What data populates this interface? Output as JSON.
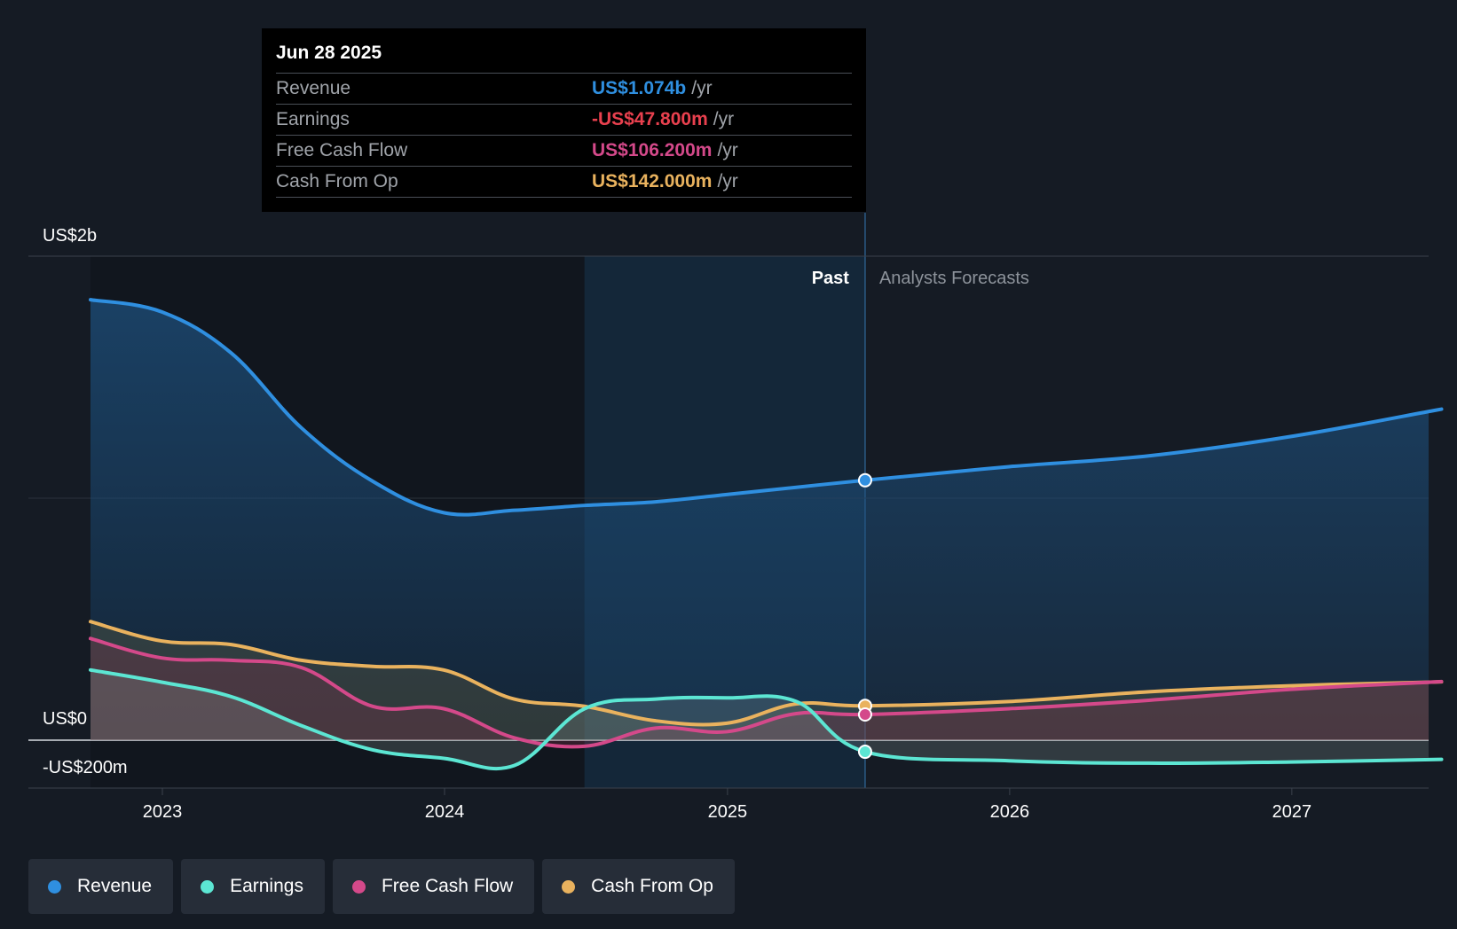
{
  "tooltip": {
    "date": "Jun 28 2025",
    "rows": [
      {
        "name": "Revenue",
        "value": "US$1.074b",
        "unit": "/yr",
        "color": "#2f8fe0"
      },
      {
        "name": "Earnings",
        "value": "-US$47.800m",
        "unit": "/yr",
        "color": "#e8404e"
      },
      {
        "name": "Free Cash Flow",
        "value": "US$106.200m",
        "unit": "/yr",
        "color": "#d4498a"
      },
      {
        "name": "Cash From Op",
        "value": "US$142.000m",
        "unit": "/yr",
        "color": "#e9b25e"
      }
    ]
  },
  "legend": [
    {
      "label": "Revenue",
      "color": "#2f8fe0"
    },
    {
      "label": "Earnings",
      "color": "#5ce6d3"
    },
    {
      "label": "Free Cash Flow",
      "color": "#d4498a"
    },
    {
      "label": "Cash From Op",
      "color": "#e9b25e"
    }
  ],
  "chart_data": {
    "type": "line",
    "y_axis_labels": [
      "US$2b",
      "US$0",
      "-US$200m"
    ],
    "x_ticks": [
      "2023",
      "2024",
      "2025",
      "2026",
      "2027"
    ],
    "ylim": [
      -400,
      2000
    ],
    "region_labels": {
      "past": "Past",
      "forecast": "Analysts Forecasts"
    },
    "past_end_date": "2025-06-28",
    "series": [
      {
        "name": "Revenue",
        "color": "#2f8fe0",
        "points": [
          [
            "2022-09-30",
            1820
          ],
          [
            "2022-12-31",
            1770
          ],
          [
            "2023-03-31",
            1600
          ],
          [
            "2023-06-30",
            1290
          ],
          [
            "2023-09-30",
            1070
          ],
          [
            "2023-12-31",
            940
          ],
          [
            "2024-03-31",
            950
          ],
          [
            "2024-06-30",
            970
          ],
          [
            "2024-09-30",
            985
          ],
          [
            "2024-12-31",
            1015
          ],
          [
            "2025-03-31",
            1045
          ],
          [
            "2025-06-28",
            1074
          ],
          [
            "2025-12-31",
            1130
          ],
          [
            "2026-06-30",
            1175
          ],
          [
            "2026-12-31",
            1255
          ],
          [
            "2027-06-30",
            1360
          ]
        ]
      },
      {
        "name": "Earnings",
        "color": "#5ce6d3",
        "points": [
          [
            "2022-09-30",
            290
          ],
          [
            "2022-12-31",
            240
          ],
          [
            "2023-03-31",
            180
          ],
          [
            "2023-06-30",
            60
          ],
          [
            "2023-09-30",
            -40
          ],
          [
            "2023-12-31",
            -75
          ],
          [
            "2024-03-31",
            -105
          ],
          [
            "2024-06-30",
            130
          ],
          [
            "2024-09-30",
            170
          ],
          [
            "2024-12-31",
            175
          ],
          [
            "2025-03-31",
            160
          ],
          [
            "2025-06-28",
            -47.8
          ],
          [
            "2025-12-31",
            -85
          ],
          [
            "2026-06-30",
            -95
          ],
          [
            "2026-12-31",
            -90
          ],
          [
            "2027-06-30",
            -80
          ]
        ]
      },
      {
        "name": "Free Cash Flow",
        "color": "#d4498a",
        "points": [
          [
            "2022-09-30",
            420
          ],
          [
            "2022-12-31",
            340
          ],
          [
            "2023-03-31",
            330
          ],
          [
            "2023-06-30",
            300
          ],
          [
            "2023-09-30",
            140
          ],
          [
            "2023-12-31",
            130
          ],
          [
            "2024-03-31",
            10
          ],
          [
            "2024-06-30",
            -25
          ],
          [
            "2024-09-30",
            50
          ],
          [
            "2024-12-31",
            35
          ],
          [
            "2025-03-31",
            110
          ],
          [
            "2025-06-28",
            106.2
          ],
          [
            "2025-12-31",
            130
          ],
          [
            "2026-06-30",
            165
          ],
          [
            "2026-12-31",
            210
          ],
          [
            "2027-06-30",
            240
          ]
        ]
      },
      {
        "name": "Cash From Op",
        "color": "#e9b25e",
        "points": [
          [
            "2022-09-30",
            490
          ],
          [
            "2022-12-31",
            410
          ],
          [
            "2023-03-31",
            395
          ],
          [
            "2023-06-30",
            330
          ],
          [
            "2023-09-30",
            305
          ],
          [
            "2023-12-31",
            290
          ],
          [
            "2024-03-31",
            170
          ],
          [
            "2024-06-30",
            140
          ],
          [
            "2024-09-30",
            80
          ],
          [
            "2024-12-31",
            70
          ],
          [
            "2025-03-31",
            150
          ],
          [
            "2025-06-28",
            142
          ],
          [
            "2025-12-31",
            160
          ],
          [
            "2026-06-30",
            200
          ],
          [
            "2026-12-31",
            225
          ],
          [
            "2027-06-30",
            240
          ]
        ]
      }
    ]
  }
}
